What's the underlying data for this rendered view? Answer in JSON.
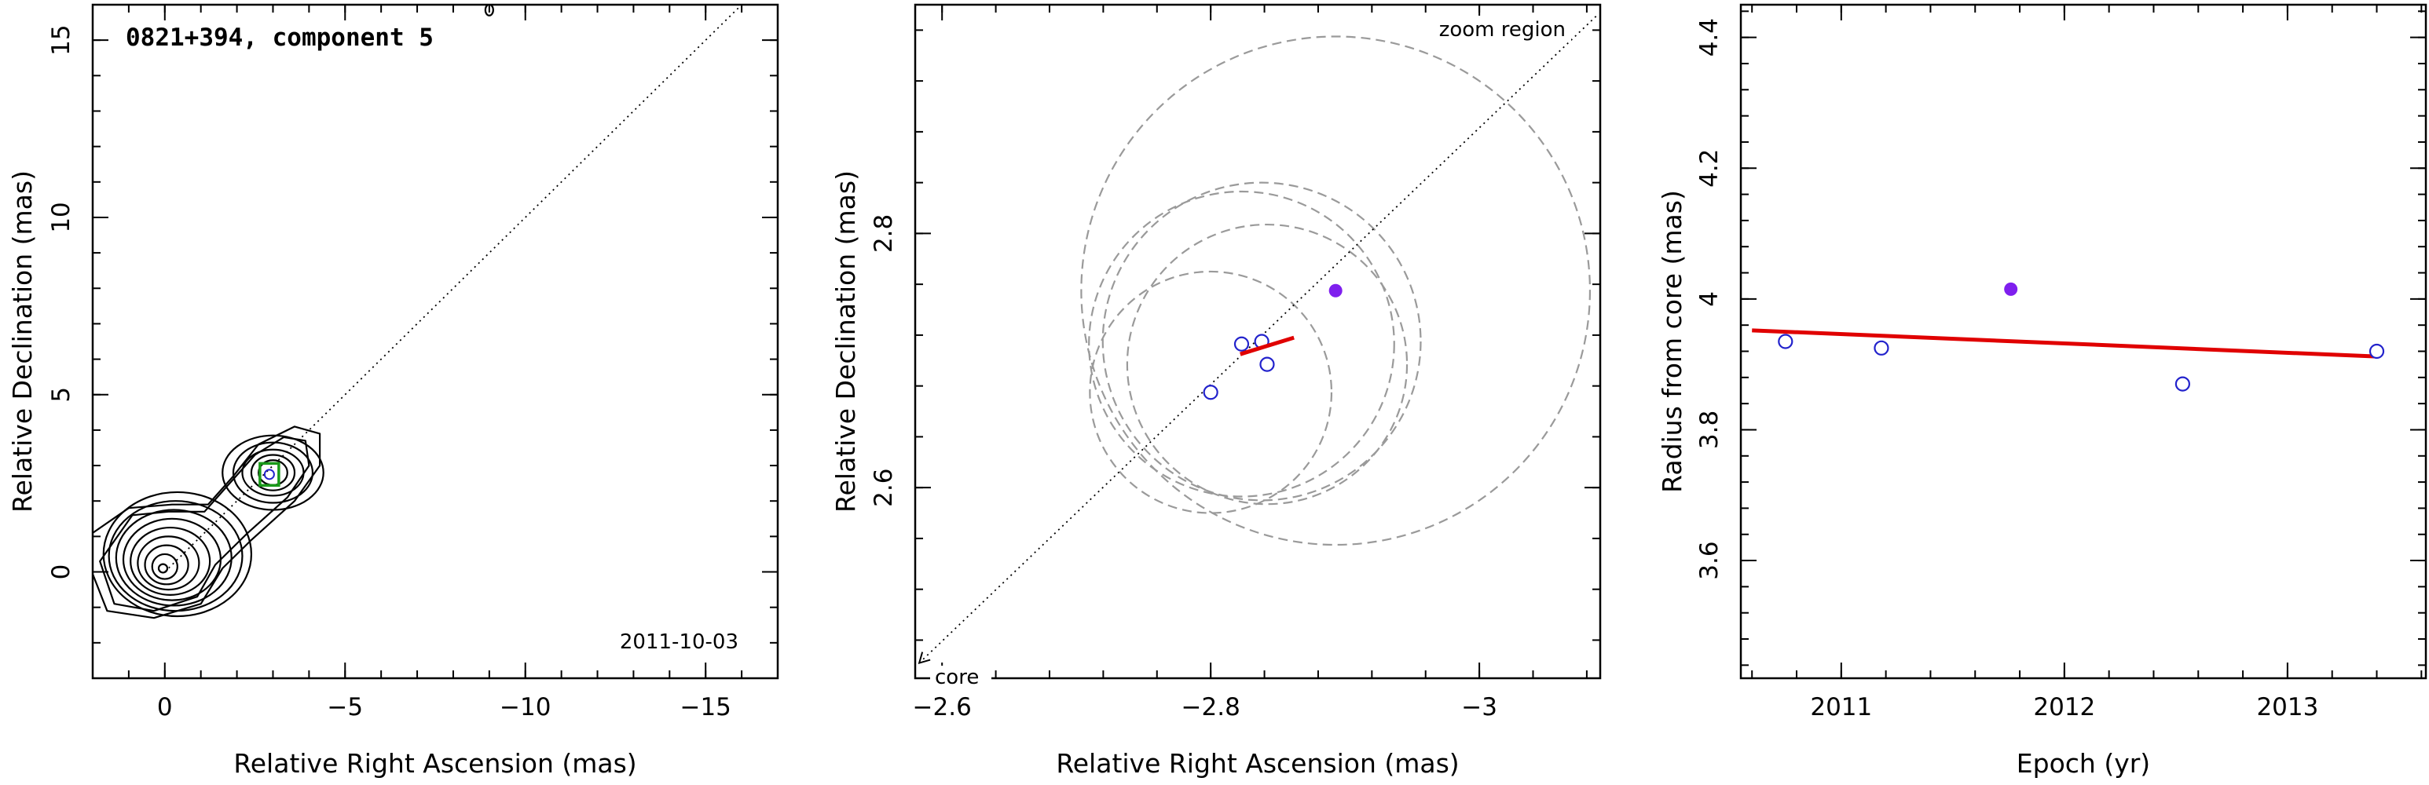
{
  "panels": {
    "left": {
      "title": "0821+394, component 5",
      "date": "2011-10-03",
      "xlabel": "Relative Right Ascension (mas)",
      "ylabel": "Relative Declination (mas)"
    },
    "middle": {
      "zoom_label": "zoom region",
      "core_label": "core",
      "xlabel": "Relative Right Ascension (mas)",
      "ylabel": "Relative Declination (mas)"
    },
    "right": {
      "xlabel": "Epoch (yr)",
      "ylabel": "Radius from core (mas)"
    }
  },
  "colors": {
    "open_marker": "#2222cc",
    "filled_marker": "#7f1fee",
    "fit_line": "#e00000",
    "model_circle": "#9a9a9a",
    "green_marker": "#1a9a1a"
  },
  "chart_data": [
    {
      "type": "contour",
      "title": "0821+394, component 5",
      "annotation": "2011-10-03",
      "xlabel": "Relative Right Ascension (mas)",
      "ylabel": "Relative Declination (mas)",
      "xlim": [
        2,
        -17
      ],
      "ylim": [
        -3,
        16
      ],
      "xticks": [
        0,
        -5,
        -10,
        -15
      ],
      "yticks": [
        0,
        5,
        10,
        15
      ],
      "component_position": {
        "x": -2.9,
        "y": 2.75
      },
      "direction_line": {
        "from": [
          0,
          0
        ],
        "to": [
          -16,
          16
        ]
      }
    },
    {
      "type": "scatter",
      "xlabel": "Relative Right Ascension (mas)",
      "ylabel": "Relative Declination (mas)",
      "xlim": [
        -2.58,
        -3.09
      ],
      "ylim": [
        2.45,
        2.98
      ],
      "xticks": [
        -2.6,
        -2.8,
        -3
      ],
      "yticks": [
        2.6,
        2.8
      ],
      "open_points": [
        {
          "x": -2.8,
          "y": 2.675
        },
        {
          "x": -2.823,
          "y": 2.713
        },
        {
          "x": -2.838,
          "y": 2.715
        },
        {
          "x": -2.842,
          "y": 2.697
        }
      ],
      "filled_point": {
        "x": -2.893,
        "y": 2.755
      },
      "fit_segment": {
        "from": [
          -2.822,
          2.705
        ],
        "to": [
          -2.862,
          2.718
        ]
      },
      "model_circles": [
        {
          "x": -2.8,
          "y": 2.675,
          "r": 0.095
        },
        {
          "x": -2.823,
          "y": 2.713,
          "r": 0.12
        },
        {
          "x": -2.838,
          "y": 2.715,
          "r": 0.125
        },
        {
          "x": -2.842,
          "y": 2.697,
          "r": 0.11
        },
        {
          "x": -2.893,
          "y": 2.755,
          "r": 0.2
        }
      ]
    },
    {
      "type": "scatter",
      "xlabel": "Epoch (yr)",
      "ylabel": "Radius from core (mas)",
      "xlim": [
        2010.55,
        2013.62
      ],
      "ylim": [
        3.42,
        4.45
      ],
      "xticks": [
        2011,
        2012,
        2013
      ],
      "yticks": [
        3.6,
        3.8,
        4,
        4.2,
        4.4
      ],
      "open_points": [
        {
          "x": 2010.75,
          "y": 3.935
        },
        {
          "x": 2011.18,
          "y": 3.925
        },
        {
          "x": 2012.53,
          "y": 3.87
        },
        {
          "x": 2013.4,
          "y": 3.92
        }
      ],
      "filled_point": {
        "x": 2011.76,
        "y": 4.015
      },
      "fit_line": {
        "from": [
          2010.6,
          3.952
        ],
        "to": [
          2013.4,
          3.912
        ]
      }
    }
  ]
}
